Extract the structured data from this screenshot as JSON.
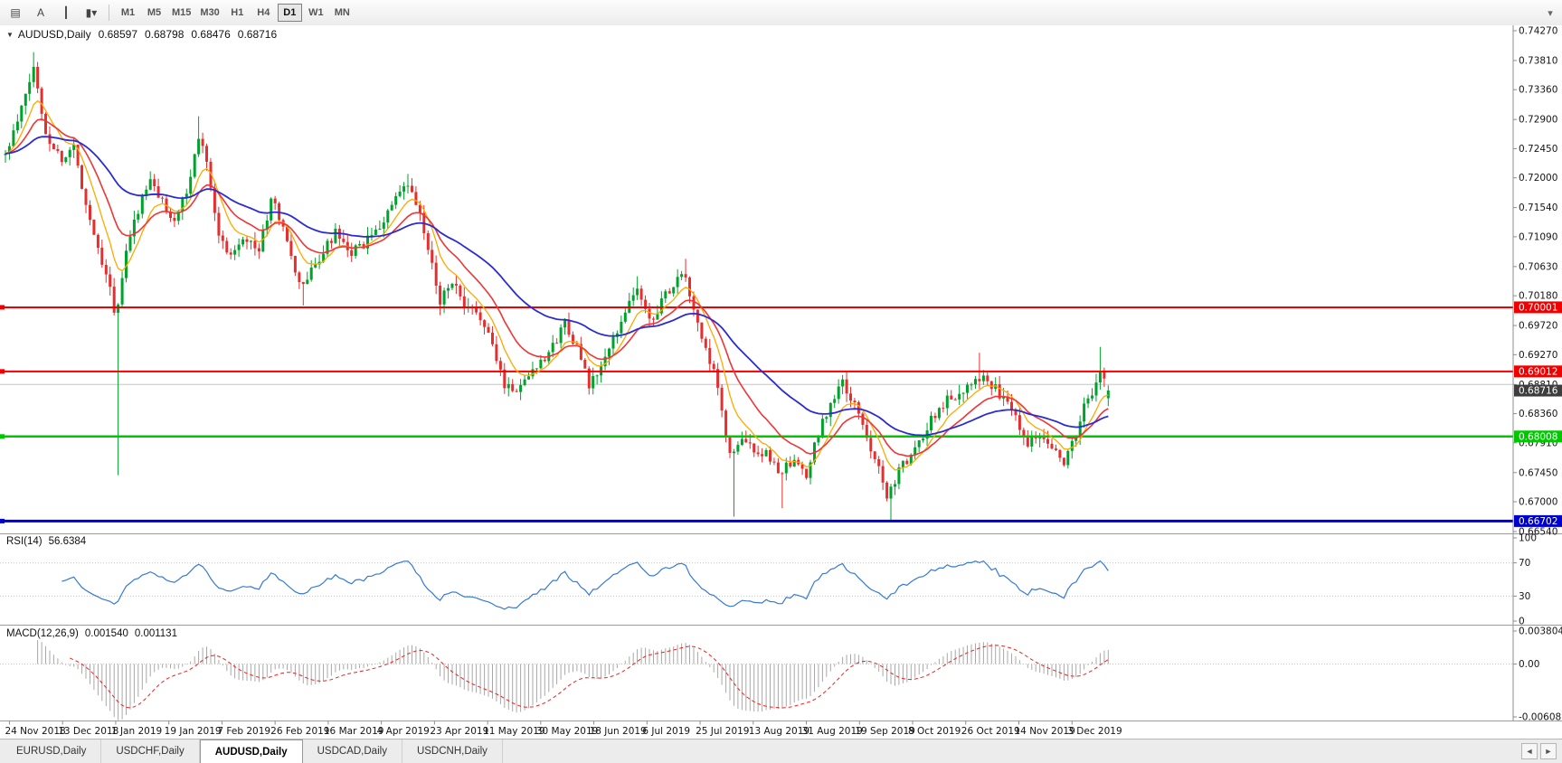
{
  "toolbar": {
    "tools": [
      {
        "name": "chart-window-icon",
        "glyph": "▤"
      },
      {
        "name": "text-tool-icon",
        "glyph": "A"
      },
      {
        "name": "vertical-line-tool-icon",
        "glyph": "┃"
      },
      {
        "name": "chart-type-dropdown-icon",
        "glyph": "▮▾"
      }
    ],
    "timeframes": [
      {
        "label": "M1"
      },
      {
        "label": "M5"
      },
      {
        "label": "M15"
      },
      {
        "label": "M30"
      },
      {
        "label": "H1"
      },
      {
        "label": "H4"
      },
      {
        "label": "D1"
      },
      {
        "label": "W1"
      },
      {
        "label": "MN"
      }
    ],
    "active_timeframe": "D1",
    "overflow_glyph": "▾"
  },
  "chart": {
    "header": {
      "collapse_glyph": "▼",
      "symbol_label": "AUDUSD,Daily",
      "open": "0.68597",
      "high": "0.68798",
      "low": "0.68476",
      "close": "0.68716"
    }
  },
  "chart_data": {
    "type": "candlestick",
    "symbol": "AUDUSD",
    "timeframe": "Daily",
    "ohlc_current": {
      "open": 0.68597,
      "high": 0.68798,
      "low": 0.68476,
      "close": 0.68716
    },
    "candle_count": 275,
    "noise_seed": 11,
    "close_noise": 0.0016,
    "wick_noise": 0.0014,
    "close_path": [
      [
        0,
        0.7235
      ],
      [
        3,
        0.7285
      ],
      [
        7,
        0.737
      ],
      [
        10,
        0.7268
      ],
      [
        14,
        0.7228
      ],
      [
        17,
        0.7248
      ],
      [
        20,
        0.716
      ],
      [
        23,
        0.7092
      ],
      [
        26,
        0.7035
      ],
      [
        27,
        0.6988
      ],
      [
        28,
        0.7002
      ],
      [
        30,
        0.7085
      ],
      [
        33,
        0.7152
      ],
      [
        36,
        0.7195
      ],
      [
        39,
        0.7162
      ],
      [
        42,
        0.7135
      ],
      [
        45,
        0.7175
      ],
      [
        48,
        0.7262
      ],
      [
        50,
        0.7232
      ],
      [
        53,
        0.7108
      ],
      [
        56,
        0.7082
      ],
      [
        59,
        0.7112
      ],
      [
        63,
        0.7088
      ],
      [
        66,
        0.7165
      ],
      [
        69,
        0.7128
      ],
      [
        72,
        0.7048
      ],
      [
        74,
        0.7035
      ],
      [
        78,
        0.7075
      ],
      [
        82,
        0.7115
      ],
      [
        85,
        0.7082
      ],
      [
        88,
        0.7092
      ],
      [
        92,
        0.7115
      ],
      [
        96,
        0.7158
      ],
      [
        100,
        0.7188
      ],
      [
        103,
        0.7142
      ],
      [
        106,
        0.7062
      ],
      [
        108,
        0.7012
      ],
      [
        111,
        0.7042
      ],
      [
        114,
        0.6998
      ],
      [
        118,
        0.6988
      ],
      [
        121,
        0.6938
      ],
      [
        124,
        0.6882
      ],
      [
        127,
        0.6872
      ],
      [
        130,
        0.6898
      ],
      [
        133,
        0.6918
      ],
      [
        136,
        0.6938
      ],
      [
        139,
        0.6978
      ],
      [
        142,
        0.6938
      ],
      [
        145,
        0.6878
      ],
      [
        148,
        0.6908
      ],
      [
        151,
        0.6948
      ],
      [
        154,
        0.6998
      ],
      [
        157,
        0.7028
      ],
      [
        160,
        0.6978
      ],
      [
        163,
        0.7008
      ],
      [
        166,
        0.7038
      ],
      [
        169,
        0.7048
      ],
      [
        171,
        0.6992
      ],
      [
        174,
        0.6932
      ],
      [
        176,
        0.6898
      ],
      [
        178,
        0.6838
      ],
      [
        180,
        0.6772
      ],
      [
        183,
        0.6792
      ],
      [
        186,
        0.6782
      ],
      [
        189,
        0.6772
      ],
      [
        192,
        0.6748
      ],
      [
        196,
        0.6758
      ],
      [
        199,
        0.6738
      ],
      [
        202,
        0.6808
      ],
      [
        205,
        0.6852
      ],
      [
        208,
        0.6882
      ],
      [
        211,
        0.6848
      ],
      [
        214,
        0.6798
      ],
      [
        217,
        0.6758
      ],
      [
        219,
        0.6708
      ],
      [
        222,
        0.6748
      ],
      [
        226,
        0.6778
      ],
      [
        230,
        0.6828
      ],
      [
        234,
        0.6858
      ],
      [
        238,
        0.6872
      ],
      [
        241,
        0.6897
      ],
      [
        245,
        0.6882
      ],
      [
        248,
        0.6858
      ],
      [
        251,
        0.6832
      ],
      [
        254,
        0.6792
      ],
      [
        257,
        0.6808
      ],
      [
        260,
        0.6788
      ],
      [
        263,
        0.6762
      ],
      [
        266,
        0.6802
      ],
      [
        268,
        0.6848
      ],
      [
        270,
        0.6862
      ],
      [
        272,
        0.6905
      ],
      [
        273,
        0.6888
      ],
      [
        274,
        0.68716
      ]
    ],
    "special_wicks": [
      {
        "i": 7,
        "high": 0.7394
      },
      {
        "i": 28,
        "low": 0.6741
      },
      {
        "i": 48,
        "high": 0.7295
      },
      {
        "i": 74,
        "low": 0.7003
      },
      {
        "i": 100,
        "high": 0.7206
      },
      {
        "i": 108,
        "low": 0.6988
      },
      {
        "i": 157,
        "high": 0.7048
      },
      {
        "i": 169,
        "high": 0.7075
      },
      {
        "i": 181,
        "low": 0.6677
      },
      {
        "i": 193,
        "low": 0.669
      },
      {
        "i": 208,
        "high": 0.6895
      },
      {
        "i": 220,
        "low": 0.667
      },
      {
        "i": 242,
        "high": 0.693
      },
      {
        "i": 263,
        "low": 0.6754
      },
      {
        "i": 272,
        "high": 0.6939
      }
    ],
    "y_axis": {
      "max": 0.7427,
      "min": 0.6654,
      "tick_labels": [
        "0.74270",
        "0.73810",
        "0.73360",
        "0.72900",
        "0.72450",
        "0.72000",
        "0.71540",
        "0.71090",
        "0.70630",
        "0.70180",
        "0.69720",
        "0.69270",
        "0.68810",
        "0.68360",
        "0.67910",
        "0.67450",
        "0.67000",
        "0.66540"
      ]
    },
    "x_axis_dates": [
      "24 Nov 2018",
      "13 Dec 2018",
      "1 Jan 2019",
      "19 Jan 2019",
      "7 Feb 2019",
      "26 Feb 2019",
      "16 Mar 2019",
      "4 Apr 2019",
      "23 Apr 2019",
      "11 May 2019",
      "30 May 2019",
      "18 Jun 2019",
      "6 Jul 2019",
      "25 Jul 2019",
      "13 Aug 2019",
      "31 Aug 2019",
      "19 Sep 2019",
      "8 Oct 2019",
      "26 Oct 2019",
      "14 Nov 2019",
      "3 Dec 2019"
    ],
    "levels": [
      {
        "price": 0.70001,
        "label": "0.70001",
        "color": "#f00000",
        "width": 2
      },
      {
        "price": 0.69012,
        "label": "0.69012",
        "color": "#f00000",
        "width": 2
      },
      {
        "price": 0.68008,
        "label": "0.68008",
        "color": "#00c800",
        "width": 2.5
      },
      {
        "price": 0.66702,
        "label": "0.66702",
        "color": "#0000cc",
        "width": 3
      }
    ],
    "extra_lines": [
      {
        "price": 0.6881,
        "color": "#c4c4c4",
        "width": 1
      }
    ],
    "current_price": {
      "value": 0.68716,
      "label": "0.68716",
      "badge_color": "#3d3d3d"
    },
    "colors": {
      "up": "#00a22c",
      "down": "#e62e2e",
      "background": "#ffffff"
    },
    "moving_averages": [
      {
        "name": "fast",
        "period": 8,
        "color": "#ffa800",
        "width": 1.3
      },
      {
        "name": "medium",
        "period": 17,
        "color": "#ef3535",
        "width": 1.6
      },
      {
        "name": "slow",
        "period": 44,
        "color": "#2b2bd4",
        "width": 1.8
      }
    ],
    "indicators": {
      "rsi": {
        "label": "RSI(14)",
        "period": 14,
        "value_label": "56.6384",
        "levels": [
          30,
          70
        ],
        "axis_labels": [
          "100",
          "70",
          "30",
          "0"
        ],
        "color": "#3379d6"
      },
      "macd": {
        "label": "MACD(12,26,9)",
        "fast": 12,
        "slow": 26,
        "signal": 9,
        "value_labels": [
          "0.001540",
          "0.001131"
        ],
        "range": [
          -0.006087,
          0.003804
        ],
        "axis_ticks": [
          {
            "label": "0.003804",
            "value": 0.003804
          },
          {
            "label": "0.00",
            "value": 0
          },
          {
            "label": "-0.006087",
            "value": -0.006087
          }
        ],
        "hist_color": "#a8a8a8",
        "signal_color": "#ee2020"
      }
    }
  },
  "tabs": {
    "items": [
      {
        "label": "EURUSD,Daily",
        "active": false
      },
      {
        "label": "USDCHF,Daily",
        "active": false
      },
      {
        "label": "AUDUSD,Daily",
        "active": true
      },
      {
        "label": "USDCAD,Daily",
        "active": false
      },
      {
        "label": "USDCNH,Daily",
        "active": false
      }
    ],
    "scroll_left": "◄",
    "scroll_right": "►"
  }
}
